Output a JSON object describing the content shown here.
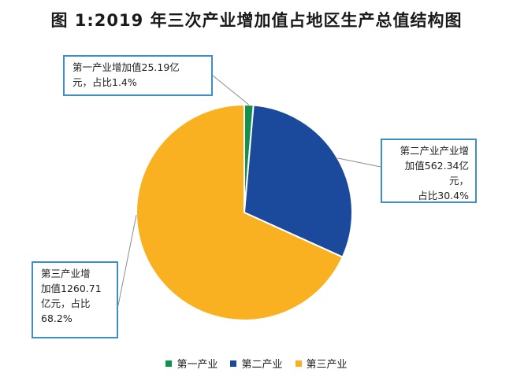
{
  "title": "图 1:2019 年三次产业增加值占地区生产总值结构图",
  "chart_data": {
    "type": "pie",
    "title": "图 1:2019 年三次产业增加值占地区生产总值结构图",
    "unit": "亿元",
    "series": [
      {
        "name": "第一产业",
        "value": 25.19,
        "percent": 1.4,
        "color": "#13914a"
      },
      {
        "name": "第二产业",
        "value": 562.34,
        "percent": 30.4,
        "color": "#1b4a9c"
      },
      {
        "name": "第三产业",
        "value": 1260.71,
        "percent": 68.2,
        "color": "#f9b122"
      }
    ],
    "legend_position": "bottom"
  },
  "callouts": {
    "primary": {
      "lines": [
        "第一产业增加值25.19亿",
        "元，占比1.4%"
      ]
    },
    "secondary": {
      "lines": [
        "第二产业产业增",
        "加值562.34亿元，",
        "占比30.4%"
      ]
    },
    "tertiary": {
      "lines": [
        "第三产业增",
        "加值1260.71",
        "亿元，占比",
        "68.2%"
      ]
    }
  },
  "legend": [
    {
      "label": "第一产业",
      "color": "#13914a"
    },
    {
      "label": "第二产业",
      "color": "#1b4a9c"
    },
    {
      "label": "第三产业",
      "color": "#f9b122"
    }
  ]
}
